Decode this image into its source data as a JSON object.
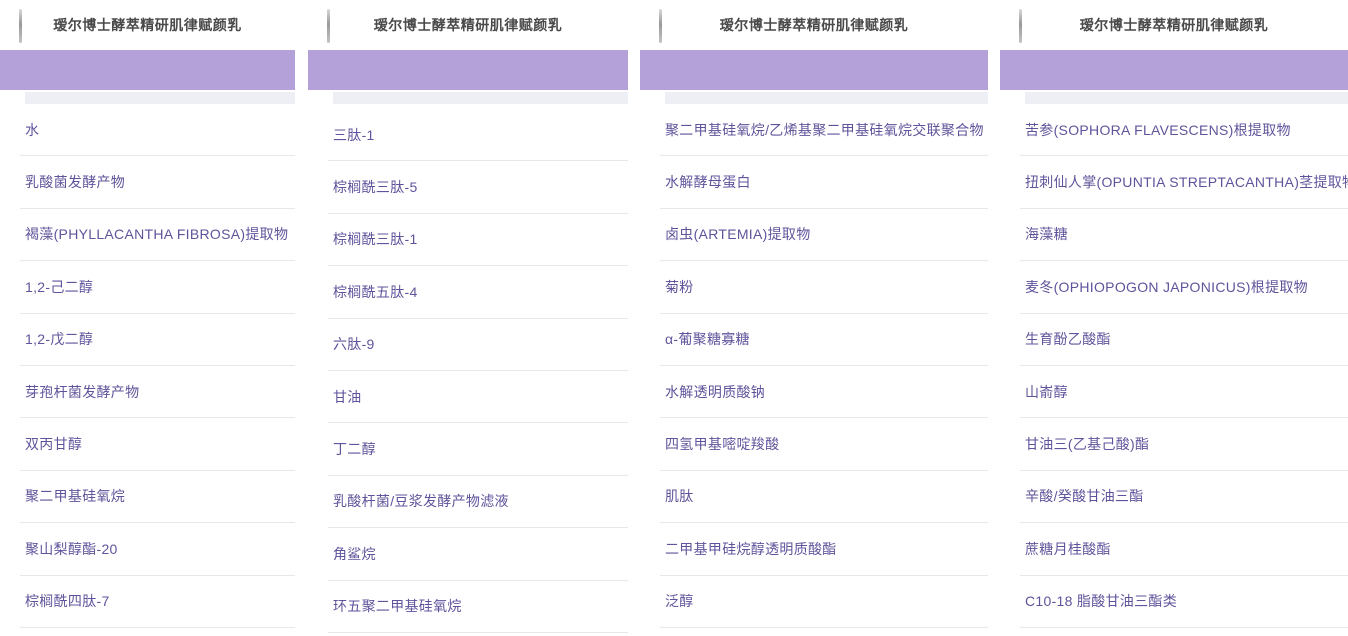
{
  "product_name": "瑷尔博士酵萃精研肌律赋颜乳",
  "colors": {
    "banner_purple": "#b5a1da",
    "ingredient_text": "#5f549b",
    "title_text": "#4a4a4a",
    "divider": "#e8e8ec",
    "strip_grey": "#edeff4"
  },
  "icons": {
    "back_mark": "vertical-grey-bar"
  },
  "panels": [
    {
      "title": "瑷尔博士酵萃精研肌律赋颜乳",
      "ingredients": [
        "水",
        "乳酸菌发酵产物",
        "褐藻(PHYLLACANTHA FIBROSA)提取物",
        "1,2-己二醇",
        "1,2-戊二醇",
        "芽孢杆菌发酵产物",
        "双丙甘醇",
        "聚二甲基硅氧烷",
        "聚山梨醇酯-20",
        "棕榈酰四肽-7"
      ]
    },
    {
      "title": "瑷尔博士酵萃精研肌律赋颜乳",
      "ingredients": [
        "三肽-1",
        "棕榈酰三肽-5",
        "棕榈酰三肽-1",
        "棕榈酰五肽-4",
        "六肽-9",
        "甘油",
        "丁二醇",
        "乳酸杆菌/豆浆发酵产物滤液",
        "角鲨烷",
        "环五聚二甲基硅氧烷"
      ]
    },
    {
      "title": "瑷尔博士酵萃精研肌律赋颜乳",
      "ingredients": [
        "聚二甲基硅氧烷/乙烯基聚二甲基硅氧烷交联聚合物",
        "水解酵母蛋白",
        "卤虫(ARTEMIA)提取物",
        "菊粉",
        "α-葡聚糖寡糖",
        "水解透明质酸钠",
        "四氢甲基嘧啶羧酸",
        "肌肽",
        "二甲基甲硅烷醇透明质酸酯",
        "泛醇"
      ]
    },
    {
      "title": "瑷尔博士酵萃精研肌律赋颜乳",
      "ingredients": [
        "苦参(SOPHORA FLAVESCENS)根提取物",
        "扭刺仙人掌(OPUNTIA STREPTACANTHA)茎提取物",
        "海藻糖",
        "麦冬(OPHIOPOGON JAPONICUS)根提取物",
        "生育酚乙酸酯",
        "山嵛醇",
        "甘油三(乙基己酸)酯",
        "辛酸/癸酸甘油三酯",
        "蔗糖月桂酸酯",
        "C10-18 脂酸甘油三酯类"
      ]
    }
  ]
}
